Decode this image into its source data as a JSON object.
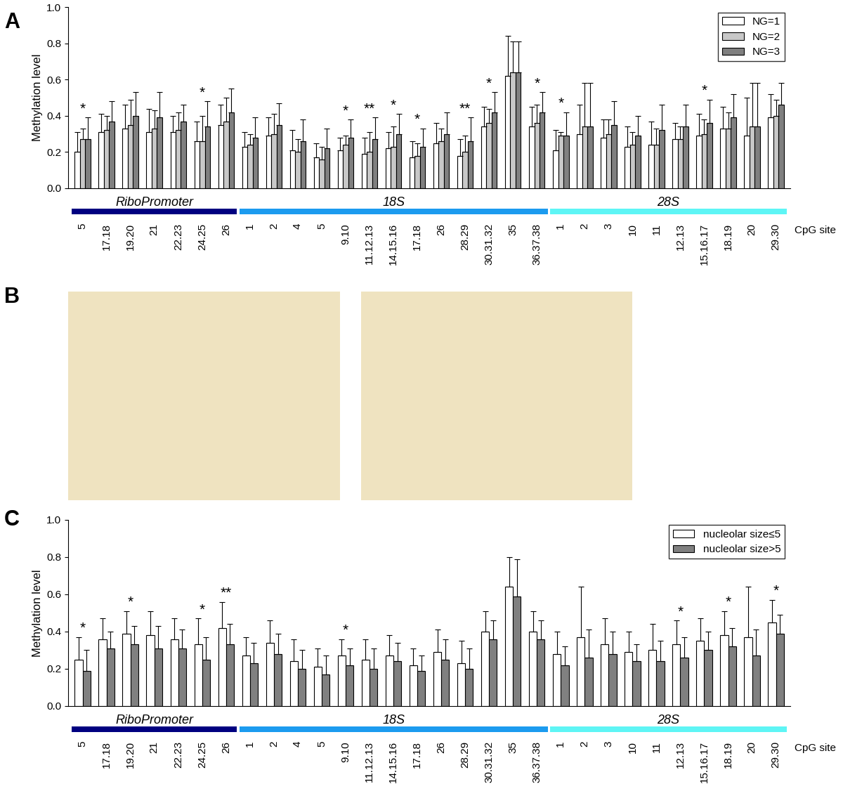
{
  "chart_data": [
    {
      "type": "bar",
      "panel": "A",
      "y_label": "Methylation level",
      "x_label": "CpG site",
      "categories": [
        "5",
        "17.18",
        "19.20",
        "21",
        "22.23",
        "24.25",
        "26",
        "1",
        "2",
        "4",
        "5",
        "9.10",
        "11.12.13",
        "14.15.16",
        "17.18",
        "26",
        "28.29",
        "30.31.32",
        "35",
        "36.37.38",
        "1",
        "2",
        "3",
        "10",
        "11",
        "12.13",
        "15.16.17",
        "18.19",
        "20",
        "29.30"
      ],
      "regions": [
        {
          "name": "RiboPromoter",
          "color": "#000080",
          "size": 7
        },
        {
          "name": "18S",
          "color": "#1c9bef",
          "size": 13
        },
        {
          "name": "28S",
          "color": "#5ef5f5",
          "size": 10
        }
      ],
      "series": [
        {
          "name": "NG=1",
          "color": "#ffffff",
          "values": [
            0.2,
            0.31,
            0.33,
            0.31,
            0.31,
            0.26,
            0.35,
            0.23,
            0.29,
            0.21,
            0.17,
            0.21,
            0.19,
            0.22,
            0.17,
            0.25,
            0.18,
            0.34,
            0.62,
            0.34,
            0.21,
            0.3,
            0.28,
            0.23,
            0.24,
            0.27,
            0.29,
            0.33,
            0.29,
            0.39
          ],
          "errors": [
            0.11,
            0.1,
            0.13,
            0.13,
            0.09,
            0.11,
            0.11,
            0.08,
            0.1,
            0.11,
            0.08,
            0.07,
            0.09,
            0.09,
            0.09,
            0.11,
            0.09,
            0.11,
            0.22,
            0.11,
            0.11,
            0.16,
            0.1,
            0.11,
            0.13,
            0.09,
            0.12,
            0.12,
            0.21,
            0.13
          ]
        },
        {
          "name": "NG=2",
          "color": "#c8c8c8",
          "values": [
            0.27,
            0.32,
            0.35,
            0.33,
            0.32,
            0.26,
            0.37,
            0.24,
            0.3,
            0.2,
            0.16,
            0.24,
            0.2,
            0.23,
            0.18,
            0.26,
            0.2,
            0.36,
            0.64,
            0.36,
            0.29,
            0.34,
            0.3,
            0.24,
            0.24,
            0.27,
            0.3,
            0.33,
            0.34,
            0.4
          ],
          "errors": [
            0.06,
            0.08,
            0.14,
            0.1,
            0.1,
            0.14,
            0.13,
            0.06,
            0.11,
            0.07,
            0.07,
            0.05,
            0.11,
            0.11,
            0.07,
            0.07,
            0.09,
            0.08,
            0.17,
            0.1,
            0.02,
            0.24,
            0.08,
            0.07,
            0.09,
            0.07,
            0.08,
            0.09,
            0.24,
            0.09
          ]
        },
        {
          "name": "NG=3",
          "color": "#808080",
          "values": [
            0.27,
            0.37,
            0.4,
            0.39,
            0.37,
            0.34,
            0.42,
            0.28,
            0.35,
            0.26,
            0.22,
            0.28,
            0.27,
            0.3,
            0.23,
            0.3,
            0.26,
            0.42,
            0.64,
            0.42,
            0.29,
            0.34,
            0.35,
            0.29,
            0.32,
            0.34,
            0.36,
            0.39,
            0.34,
            0.46
          ],
          "errors": [
            0.12,
            0.11,
            0.13,
            0.14,
            0.09,
            0.14,
            0.13,
            0.11,
            0.12,
            0.12,
            0.11,
            0.1,
            0.12,
            0.11,
            0.1,
            0.12,
            0.13,
            0.11,
            0.17,
            0.11,
            0.13,
            0.24,
            0.13,
            0.11,
            0.14,
            0.12,
            0.13,
            0.13,
            0.24,
            0.12
          ]
        }
      ],
      "significance": [
        "*",
        null,
        null,
        null,
        null,
        "*",
        null,
        null,
        null,
        null,
        null,
        "*",
        "**",
        "*",
        "*",
        null,
        "**",
        "*",
        null,
        "*",
        "*",
        null,
        null,
        null,
        null,
        null,
        "*",
        null,
        null,
        null
      ],
      "ylim": [
        0.0,
        1.0
      ],
      "yticks": [
        0.0,
        0.2,
        0.4,
        0.6,
        0.8,
        1.0
      ],
      "legend": "upper right"
    },
    {
      "type": "image",
      "panel": "B",
      "images": 2
    },
    {
      "type": "bar",
      "panel": "C",
      "y_label": "Methylation level",
      "x_label": "CpG site",
      "categories": [
        "5",
        "17.18",
        "19.20",
        "21",
        "22.23",
        "24.25",
        "26",
        "1",
        "2",
        "4",
        "5",
        "9.10",
        "11.12.13",
        "14.15.16",
        "17.18",
        "26",
        "28.29",
        "30.31.32",
        "35",
        "36.37.38",
        "1",
        "2",
        "3",
        "10",
        "11",
        "12.13",
        "15.16.17",
        "18.19",
        "20",
        "29.30"
      ],
      "regions": [
        {
          "name": "RiboPromoter",
          "color": "#000080",
          "size": 7
        },
        {
          "name": "18S",
          "color": "#1c9bef",
          "size": 13
        },
        {
          "name": "28S",
          "color": "#5ef5f5",
          "size": 10
        }
      ],
      "series": [
        {
          "name": "nucleolar size≤5",
          "color": "#ffffff",
          "values": [
            0.25,
            0.36,
            0.39,
            0.38,
            0.36,
            0.33,
            0.42,
            0.27,
            0.34,
            0.24,
            0.21,
            0.27,
            0.25,
            0.27,
            0.22,
            0.29,
            0.23,
            0.4,
            0.64,
            0.4,
            0.28,
            0.37,
            0.33,
            0.29,
            0.3,
            0.33,
            0.35,
            0.38,
            0.37,
            0.45
          ],
          "errors": [
            0.12,
            0.11,
            0.12,
            0.13,
            0.11,
            0.14,
            0.14,
            0.1,
            0.12,
            0.12,
            0.1,
            0.09,
            0.11,
            0.11,
            0.09,
            0.12,
            0.12,
            0.11,
            0.16,
            0.11,
            0.12,
            0.27,
            0.14,
            0.11,
            0.14,
            0.13,
            0.12,
            0.13,
            0.27,
            0.12
          ]
        },
        {
          "name": "nucleolar size>5",
          "color": "#808080",
          "values": [
            0.19,
            0.31,
            0.33,
            0.31,
            0.31,
            0.25,
            0.33,
            0.23,
            0.28,
            0.2,
            0.17,
            0.22,
            0.2,
            0.24,
            0.19,
            0.25,
            0.2,
            0.36,
            0.59,
            0.36,
            0.22,
            0.26,
            0.28,
            0.24,
            0.24,
            0.26,
            0.3,
            0.32,
            0.27,
            0.39
          ],
          "errors": [
            0.11,
            0.09,
            0.1,
            0.12,
            0.1,
            0.12,
            0.11,
            0.11,
            0.11,
            0.1,
            0.1,
            0.09,
            0.11,
            0.1,
            0.08,
            0.11,
            0.11,
            0.1,
            0.2,
            0.1,
            0.1,
            0.15,
            0.12,
            0.09,
            0.11,
            0.11,
            0.1,
            0.1,
            0.14,
            0.1
          ]
        }
      ],
      "significance": [
        "*",
        null,
        "*",
        null,
        null,
        "*",
        "**",
        null,
        null,
        null,
        null,
        "*",
        null,
        null,
        null,
        null,
        null,
        null,
        null,
        null,
        null,
        null,
        null,
        null,
        null,
        "*",
        null,
        "*",
        null,
        "*"
      ],
      "ylim": [
        0.0,
        1.0
      ],
      "yticks": [
        0.0,
        0.2,
        0.4,
        0.6,
        0.8,
        1.0
      ],
      "legend": "upper right"
    }
  ]
}
